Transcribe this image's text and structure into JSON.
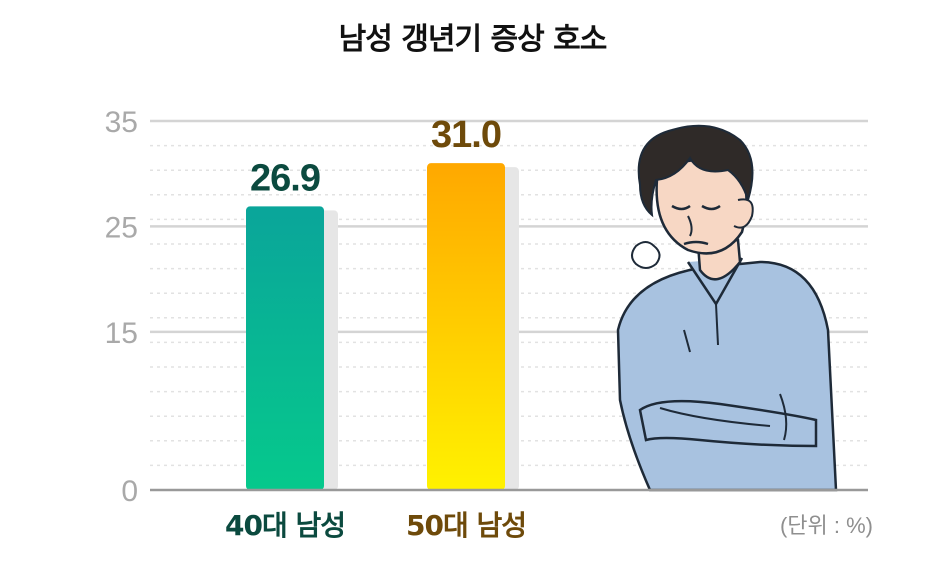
{
  "title": "남성 갱년기 증상 호소",
  "unit_label": "(단위 : %)",
  "chart_data": {
    "type": "bar",
    "title": "남성 갱년기 증상 호소",
    "categories": [
      "40대 남성",
      "50대 남성"
    ],
    "values": [
      26.9,
      31.0
    ],
    "value_labels": [
      "26.9",
      "31.0"
    ],
    "yticks": [
      0,
      15,
      25,
      35
    ],
    "ylim": [
      0,
      35
    ],
    "grid": true,
    "ylabel": "",
    "xlabel": "",
    "colors": {
      "bar_40_top": "#0aa59a",
      "bar_40_bottom": "#06c98c",
      "bar_50_top": "#ffa800",
      "bar_50_bottom": "#fff200",
      "label_40": "#0b4a3f",
      "label_50": "#6e4a0a",
      "axis_tick": "#a9a9a9"
    }
  },
  "illustration": {
    "icon": "tired-man-arms-crossed-icon"
  }
}
